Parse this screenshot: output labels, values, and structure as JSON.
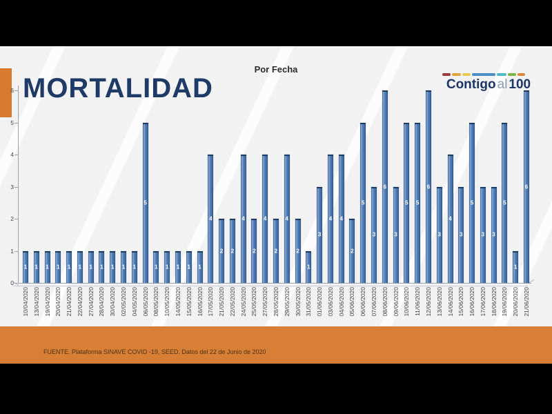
{
  "slide": {
    "title": "MORTALIDAD",
    "subtitle": "Por Fecha",
    "footer_text": "FUENTE. Plataforma SINAVE COVID -19, SEED. Datos del 22 de Junio de 2020",
    "logo": {
      "text_part1": "Contigo",
      "text_part2": "al",
      "text_part3": "100",
      "dashes": [
        {
          "color": "#9c3a40",
          "width": 12
        },
        {
          "color": "#e2a33d",
          "width": 13
        },
        {
          "color": "#e8c94f",
          "width": 12
        },
        {
          "color": "#4a8fc7",
          "width": 34
        },
        {
          "color": "#54b8c8",
          "width": 14
        },
        {
          "color": "#7ab648",
          "width": 12
        },
        {
          "color": "#e0863a",
          "width": 11
        }
      ]
    }
  },
  "colors": {
    "accent_orange": "#D87E35",
    "title_navy": "#1E3A66",
    "bar_fill": "#4674AE",
    "bar_edge": "#2A4D7F",
    "bar_highlight": "#8AA9D2",
    "bar_label": "#FFFFFF",
    "axis_gray": "#9AA3AD",
    "tick_text": "#3F3F3F",
    "slide_background": "#F3F3F4",
    "letterbox_black": "#000000",
    "footer_text_color": "#4A3318"
  },
  "chart_data": {
    "type": "bar",
    "title": "MORTALIDAD",
    "subtitle": "Por Fecha",
    "xlabel": "",
    "ylabel": "",
    "ylim": [
      0,
      6
    ],
    "yticks": [
      0,
      1,
      2,
      3,
      4,
      5,
      6
    ],
    "grid": false,
    "legend": false,
    "bar_value_labels": true,
    "categories": [
      "10/04/2020",
      "13/04/2020",
      "19/04/2020",
      "20/04/2020",
      "21/04/2020",
      "22/04/2020",
      "27/04/2020",
      "28/04/2020",
      "30/04/2020",
      "02/05/2020",
      "04/05/2020",
      "06/05/2020",
      "08/05/2020",
      "10/05/2020",
      "14/05/2020",
      "15/05/2020",
      "16/05/2020",
      "17/05/2020",
      "21/05/2020",
      "22/05/2020",
      "24/05/2020",
      "25/05/2020",
      "27/05/2020",
      "28/05/2020",
      "29/05/2020",
      "30/05/2020",
      "31/05/2020",
      "01/06/2020",
      "03/06/2020",
      "04/06/2020",
      "05/06/2020",
      "06/06/2020",
      "07/06/2020",
      "08/06/2020",
      "09/06/2020",
      "10/06/2020",
      "11/06/2020",
      "12/06/2020",
      "13/06/2020",
      "14/06/2020",
      "15/06/2020",
      "16/06/2020",
      "17/06/2020",
      "18/06/2020",
      "19/06/2020",
      "20/06/2020",
      "21/06/2020"
    ],
    "values": [
      1,
      1,
      1,
      1,
      1,
      1,
      1,
      1,
      1,
      1,
      1,
      5,
      1,
      1,
      1,
      1,
      1,
      4,
      2,
      2,
      4,
      2,
      4,
      2,
      4,
      2,
      1,
      3,
      4,
      4,
      2,
      5,
      3,
      6,
      3,
      5,
      5,
      6,
      3,
      4,
      3,
      5,
      3,
      3,
      5,
      1,
      6
    ]
  }
}
